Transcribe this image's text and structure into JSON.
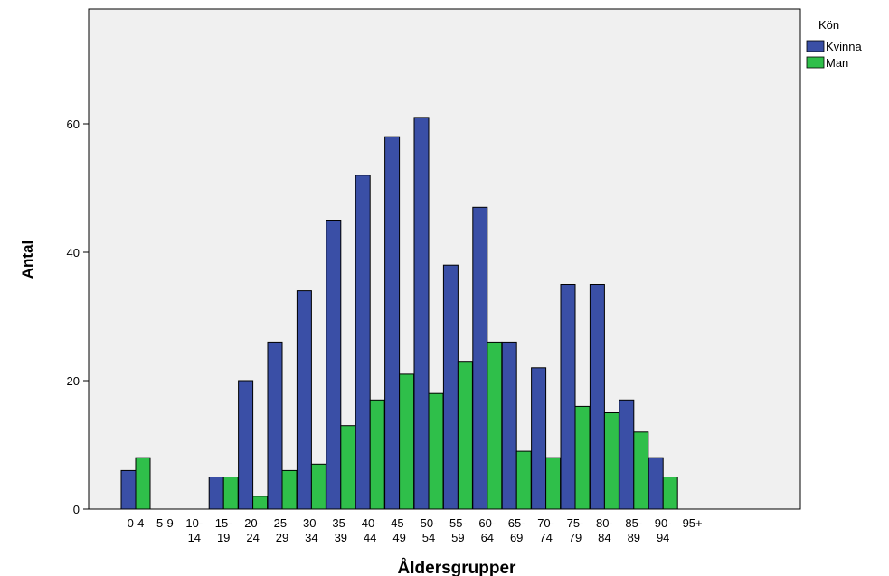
{
  "chart_data": {
    "type": "bar",
    "title": "",
    "xlabel": "Åldersgrupper",
    "ylabel": "Antal",
    "ylim": [
      0,
      75
    ],
    "yticks": [
      0,
      20,
      40,
      60
    ],
    "grid": false,
    "legend_title": "Kön",
    "legend_position": "top-right",
    "categories": [
      {
        "line1": "0-4",
        "line2": ""
      },
      {
        "line1": "5-9",
        "line2": ""
      },
      {
        "line1": "10-",
        "line2": "14"
      },
      {
        "line1": "15-",
        "line2": "19"
      },
      {
        "line1": "20-",
        "line2": "24"
      },
      {
        "line1": "25-",
        "line2": "29"
      },
      {
        "line1": "30-",
        "line2": "34"
      },
      {
        "line1": "35-",
        "line2": "39"
      },
      {
        "line1": "40-",
        "line2": "44"
      },
      {
        "line1": "45-",
        "line2": "49"
      },
      {
        "line1": "50-",
        "line2": "54"
      },
      {
        "line1": "55-",
        "line2": "59"
      },
      {
        "line1": "60-",
        "line2": "64"
      },
      {
        "line1": "65-",
        "line2": "69"
      },
      {
        "line1": "70-",
        "line2": "74"
      },
      {
        "line1": "75-",
        "line2": "79"
      },
      {
        "line1": "80-",
        "line2": "84"
      },
      {
        "line1": "85-",
        "line2": "89"
      },
      {
        "line1": "90-",
        "line2": "94"
      },
      {
        "line1": "95+",
        "line2": ""
      }
    ],
    "series": [
      {
        "name": "Kvinna",
        "color": "#3a4fa6",
        "values": [
          6,
          0,
          0,
          5,
          20,
          26,
          34,
          45,
          52,
          58,
          61,
          38,
          47,
          26,
          22,
          35,
          35,
          17,
          8,
          0
        ]
      },
      {
        "name": "Man",
        "color": "#2fbf4a",
        "values": [
          8,
          0,
          0,
          5,
          2,
          6,
          7,
          13,
          17,
          21,
          18,
          23,
          26,
          9,
          8,
          16,
          15,
          12,
          5,
          0
        ]
      }
    ],
    "plot_background": "#f0f0f0"
  }
}
